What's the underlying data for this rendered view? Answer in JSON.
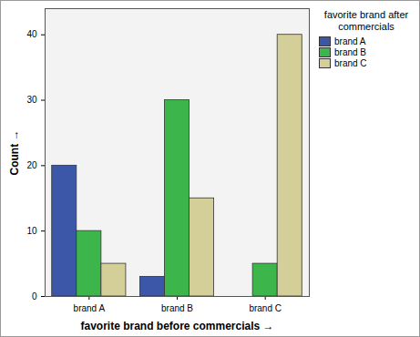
{
  "chart_data": {
    "type": "bar",
    "xlabel": "favorite brand before commercials",
    "ylabel": "Count",
    "legend_title": "favorite brand after commercials",
    "categories": [
      "brand A",
      "brand B",
      "brand C"
    ],
    "series": [
      {
        "name": "brand A",
        "color": "#3d57a8",
        "values": [
          20,
          3,
          0
        ]
      },
      {
        "name": "brand B",
        "color": "#3cb54a",
        "values": [
          10,
          30,
          5
        ]
      },
      {
        "name": "brand C",
        "color": "#d4cf98",
        "values": [
          5,
          15,
          40
        ]
      }
    ],
    "ylim": [
      0,
      44
    ],
    "yticks": [
      0,
      10,
      20,
      30,
      40
    ],
    "grid": false,
    "legend": "right"
  }
}
